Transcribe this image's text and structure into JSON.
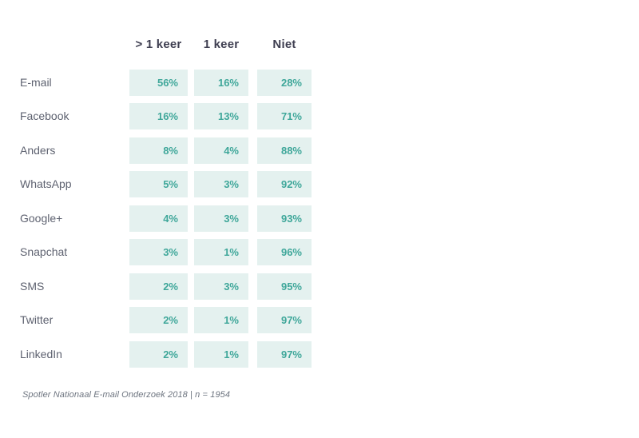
{
  "table": {
    "columns": [
      "> 1 keer",
      "1 keer",
      "Niet"
    ],
    "rows": [
      {
        "label": "E-mail",
        "values": [
          "56%",
          "16%",
          "28%"
        ]
      },
      {
        "label": "Facebook",
        "values": [
          "16%",
          "13%",
          "71%"
        ]
      },
      {
        "label": "Anders",
        "values": [
          "8%",
          "4%",
          "88%"
        ]
      },
      {
        "label": "WhatsApp",
        "values": [
          "5%",
          "3%",
          "92%"
        ]
      },
      {
        "label": "Google+",
        "values": [
          "4%",
          "3%",
          "93%"
        ]
      },
      {
        "label": "Snapchat",
        "values": [
          "3%",
          "1%",
          "96%"
        ]
      },
      {
        "label": "SMS",
        "values": [
          "2%",
          "3%",
          "95%"
        ]
      },
      {
        "label": "Twitter",
        "values": [
          "2%",
          "1%",
          "97%"
        ]
      },
      {
        "label": "LinkedIn",
        "values": [
          "2%",
          "1%",
          "97%"
        ]
      }
    ],
    "source": "Spotler Nationaal E-mail Onderzoek 2018 | n = 1954"
  },
  "colors": {
    "cell_background": "#e4f1ef",
    "value_text": "#3fa79a",
    "header_text": "#3e3e50",
    "label_text": "#5e6270",
    "source_text": "#6e7580",
    "page_background": "#ffffff"
  },
  "chart_data": {
    "type": "table",
    "title": "",
    "columns": [
      "> 1 keer",
      "1 keer",
      "Niet"
    ],
    "categories": [
      "E-mail",
      "Facebook",
      "Anders",
      "WhatsApp",
      "Google+",
      "Snapchat",
      "SMS",
      "Twitter",
      "LinkedIn"
    ],
    "series": [
      {
        "name": "> 1 keer",
        "values": [
          56,
          16,
          8,
          5,
          4,
          3,
          2,
          2,
          2
        ]
      },
      {
        "name": "1 keer",
        "values": [
          16,
          13,
          4,
          3,
          3,
          1,
          3,
          1,
          1
        ]
      },
      {
        "name": "Niet",
        "values": [
          28,
          71,
          88,
          92,
          93,
          96,
          95,
          97,
          97
        ]
      }
    ],
    "unit": "%",
    "legend_position": "top",
    "grid": false,
    "source": "Spotler Nationaal E-mail Onderzoek 2018 | n = 1954"
  }
}
